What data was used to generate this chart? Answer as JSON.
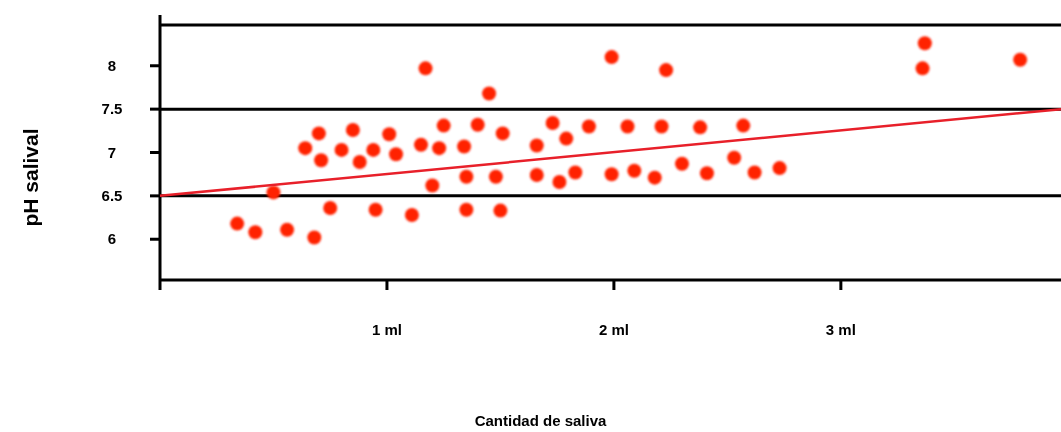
{
  "chart_data": {
    "type": "scatter",
    "xlabel": "Cantidad de saliva",
    "ylabel": "pH salival",
    "xlim": [
      0,
      3.97
    ],
    "ylim": [
      5.53,
      8.47
    ],
    "xticks": [
      {
        "value": 1,
        "label": "1 ml"
      },
      {
        "value": 2,
        "label": "2 ml"
      },
      {
        "value": 3,
        "label": "3 ml"
      }
    ],
    "yticks": [
      6,
      6.5,
      7,
      7.5,
      8
    ],
    "grid": false,
    "marker": "circle",
    "ref_lines": [
      {
        "axis": "y",
        "value": 6.5,
        "color": "#000000"
      },
      {
        "axis": "y",
        "value": 7.5,
        "color": "#000000"
      }
    ],
    "series": [
      {
        "color": "#ff2200",
        "x": [
          0.34,
          0.42,
          0.5,
          0.56,
          0.64,
          0.68,
          0.7,
          0.71,
          0.75,
          0.8,
          0.85,
          0.88,
          0.94,
          0.95,
          1.01,
          1.04,
          1.11,
          1.15,
          1.17,
          1.2,
          1.23,
          1.25,
          1.34,
          1.35,
          1.35,
          1.4,
          1.45,
          1.48,
          1.5,
          1.51,
          1.66,
          1.66,
          1.73,
          1.76,
          1.79,
          1.83,
          1.89,
          1.99,
          1.99,
          2.06,
          2.09,
          2.18,
          2.21,
          2.23,
          2.3,
          2.38,
          2.41,
          2.53,
          2.57,
          2.62,
          2.73,
          3.37,
          3.36,
          3.79
        ],
        "values": [
          6.18,
          6.08,
          6.54,
          6.11,
          7.05,
          6.02,
          7.22,
          6.91,
          6.36,
          7.03,
          7.26,
          6.89,
          7.03,
          6.34,
          7.21,
          6.98,
          6.28,
          7.09,
          7.97,
          6.62,
          7.05,
          7.31,
          7.07,
          6.72,
          6.34,
          7.32,
          7.68,
          6.72,
          6.33,
          7.22,
          7.08,
          6.74,
          7.34,
          6.66,
          7.16,
          6.77,
          7.3,
          6.75,
          8.1,
          7.3,
          6.79,
          6.71,
          7.3,
          7.95,
          6.87,
          7.29,
          6.76,
          6.94,
          7.31,
          6.77,
          6.82,
          8.26,
          7.97,
          8.07
        ]
      },
      {
        "type": "line",
        "color": "#e8202a",
        "line_style": "solid",
        "marker": "none",
        "x": [
          0,
          3.97
        ],
        "values": [
          6.5,
          7.5
        ]
      }
    ]
  }
}
